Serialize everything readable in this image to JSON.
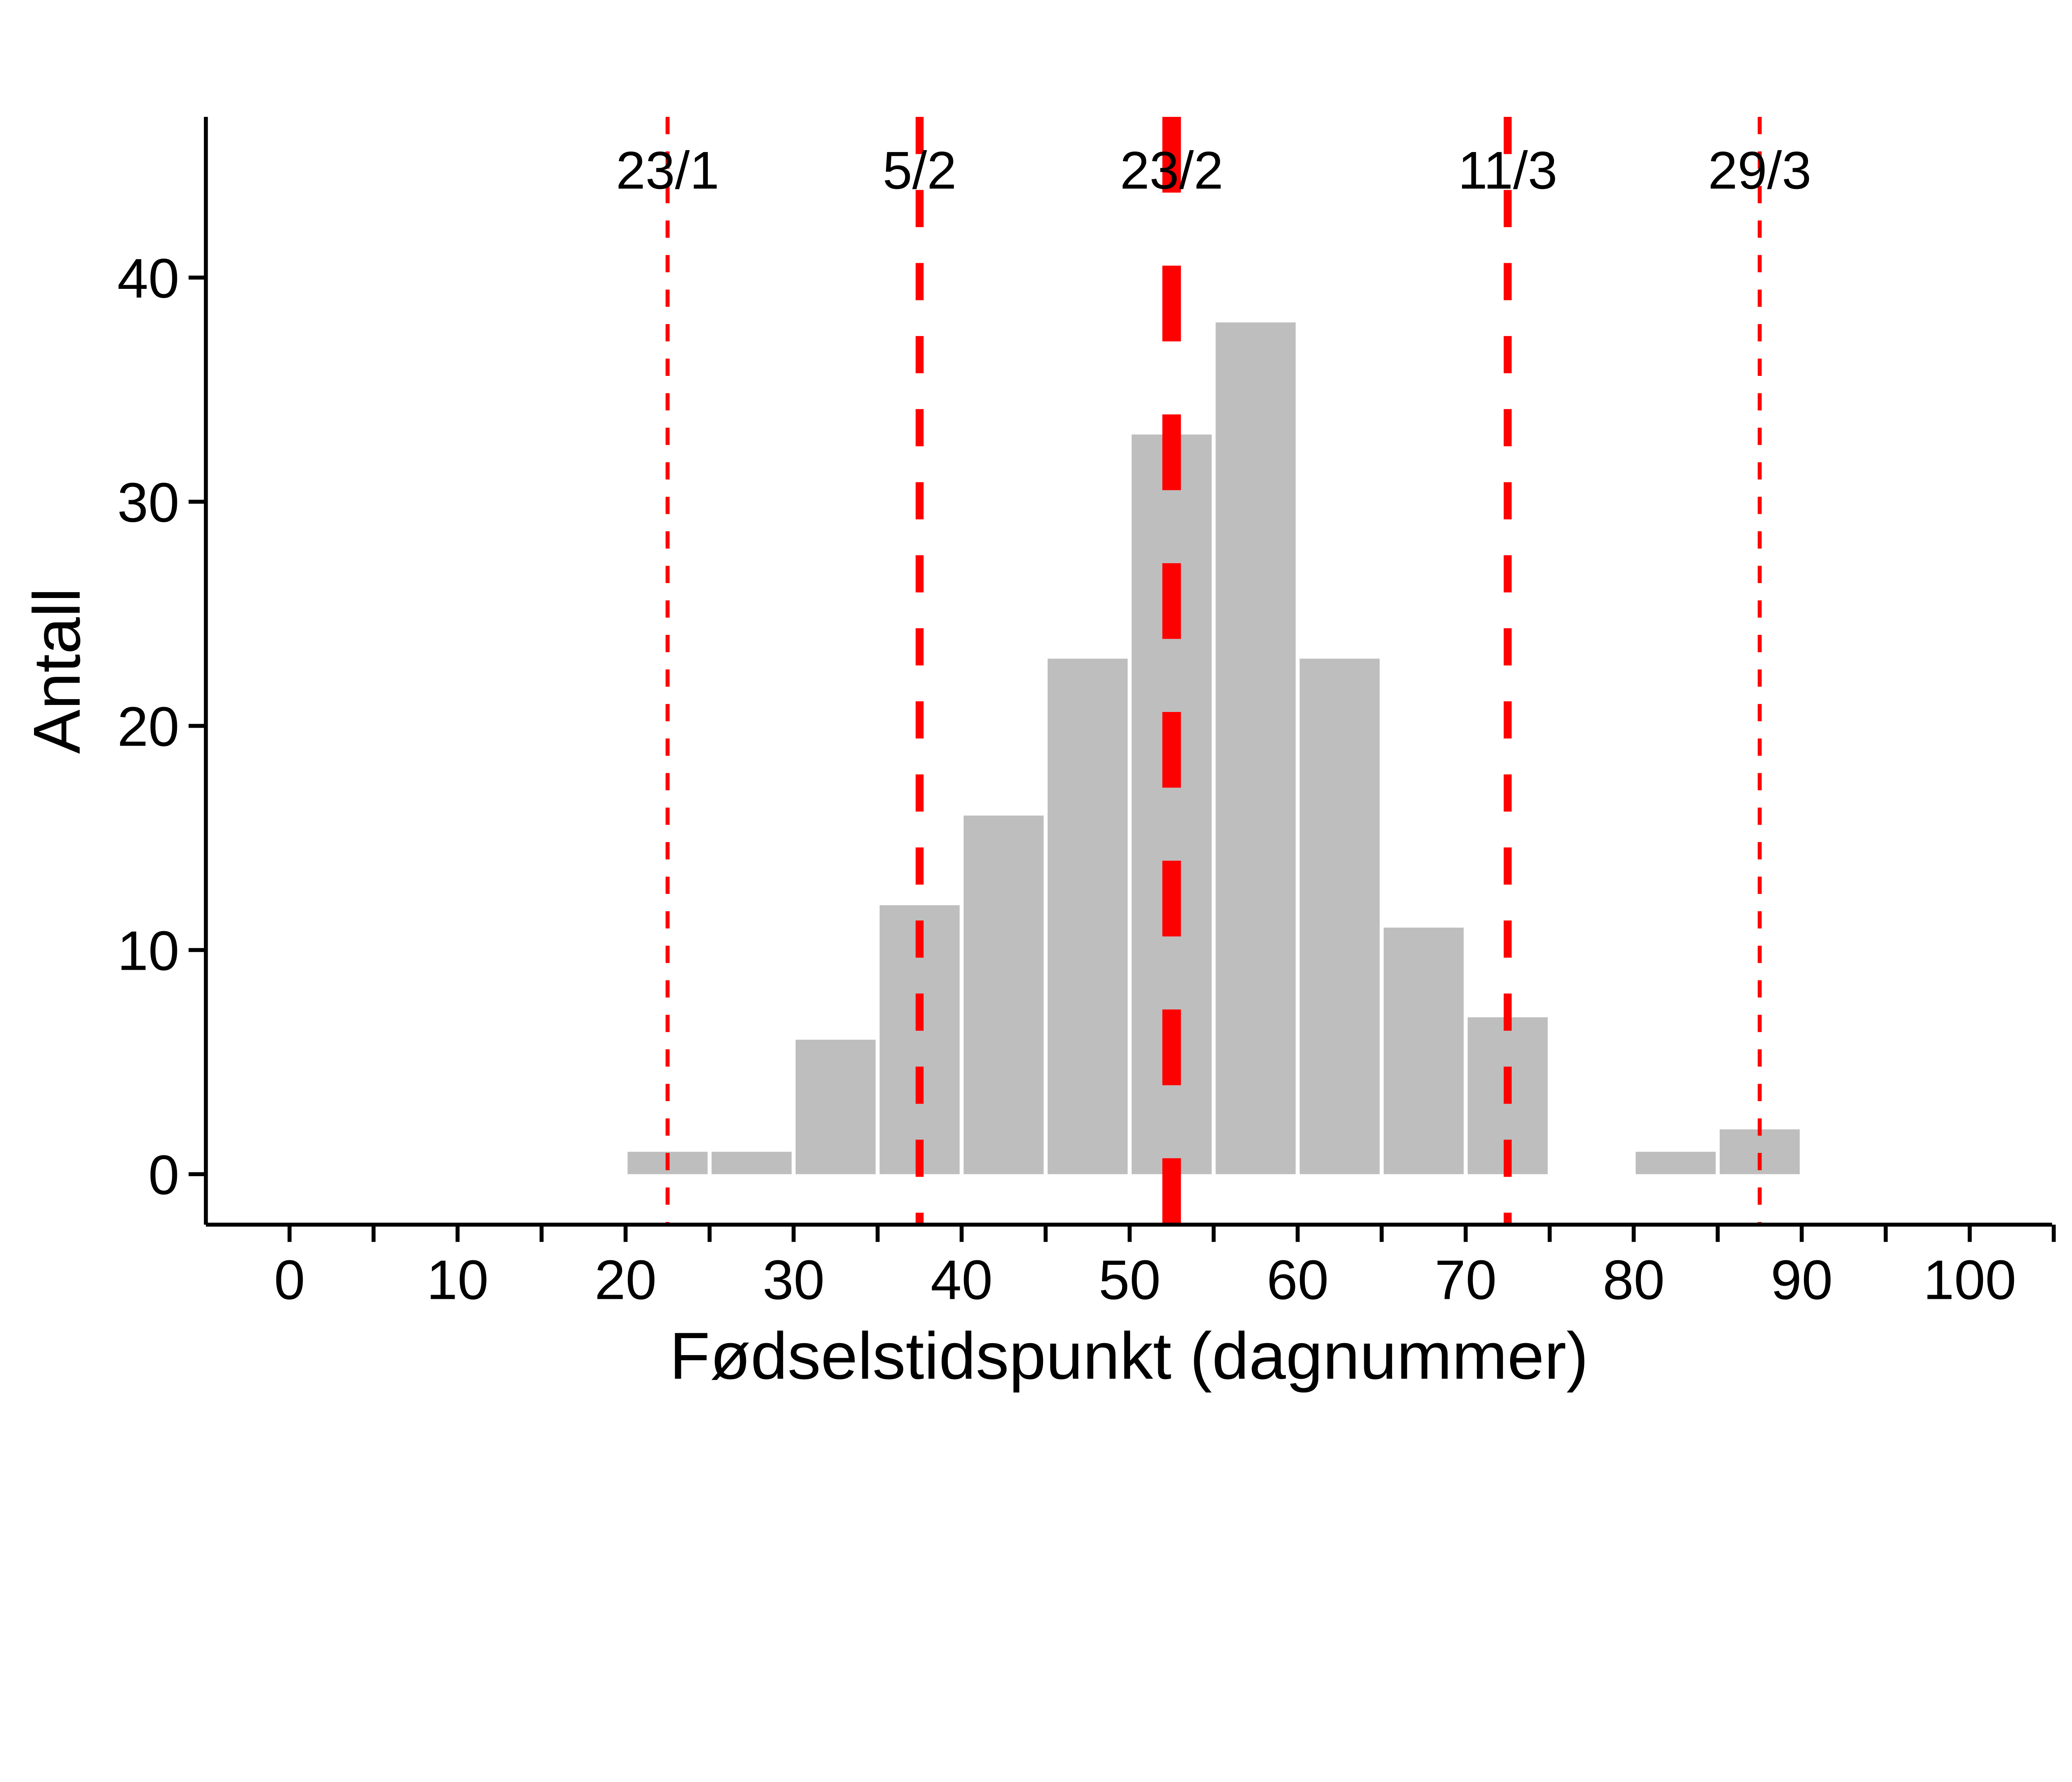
{
  "chart_data": {
    "type": "bar",
    "subtype": "histogram",
    "title": "",
    "xlabel": "Fødselstidspunkt (dagnummer)",
    "ylabel": "Antall",
    "xlim": [
      -5,
      105
    ],
    "ylim": [
      -2.2,
      47
    ],
    "bin_width": 5,
    "bins": [
      {
        "start": 20,
        "end": 25,
        "count": 1
      },
      {
        "start": 25,
        "end": 30,
        "count": 1
      },
      {
        "start": 30,
        "end": 35,
        "count": 6
      },
      {
        "start": 35,
        "end": 40,
        "count": 12
      },
      {
        "start": 40,
        "end": 45,
        "count": 16
      },
      {
        "start": 45,
        "end": 50,
        "count": 23
      },
      {
        "start": 50,
        "end": 55,
        "count": 33
      },
      {
        "start": 55,
        "end": 60,
        "count": 38
      },
      {
        "start": 60,
        "end": 65,
        "count": 23
      },
      {
        "start": 65,
        "end": 70,
        "count": 11
      },
      {
        "start": 70,
        "end": 75,
        "count": 7
      },
      {
        "start": 75,
        "end": 80,
        "count": 0
      },
      {
        "start": 80,
        "end": 85,
        "count": 1
      },
      {
        "start": 85,
        "end": 90,
        "count": 2
      }
    ],
    "x_ticks": [
      0,
      10,
      20,
      30,
      40,
      50,
      60,
      70,
      80,
      90,
      100
    ],
    "x_tick_labels": [
      "0",
      "10",
      "20",
      "30",
      "40",
      "50",
      "60",
      "70",
      "80",
      "90",
      "100"
    ],
    "y_ticks": [
      0,
      10,
      20,
      30,
      40
    ],
    "y_tick_labels": [
      "0",
      "10",
      "20",
      "30",
      "40"
    ],
    "reference_lines": [
      {
        "x": 22.5,
        "label": "23/1",
        "style": "dotted"
      },
      {
        "x": 37.5,
        "label": "5/2",
        "style": "dashed"
      },
      {
        "x": 52.5,
        "label": "23/2",
        "style": "thick-dashed"
      },
      {
        "x": 72.5,
        "label": "11/3",
        "style": "dashed"
      },
      {
        "x": 87.5,
        "label": "29/3",
        "style": "dotted"
      }
    ],
    "colors": {
      "bar": "#BEBEBE",
      "line": "#FF0000",
      "axis": "#000000"
    },
    "grid": false,
    "legend": "none"
  }
}
